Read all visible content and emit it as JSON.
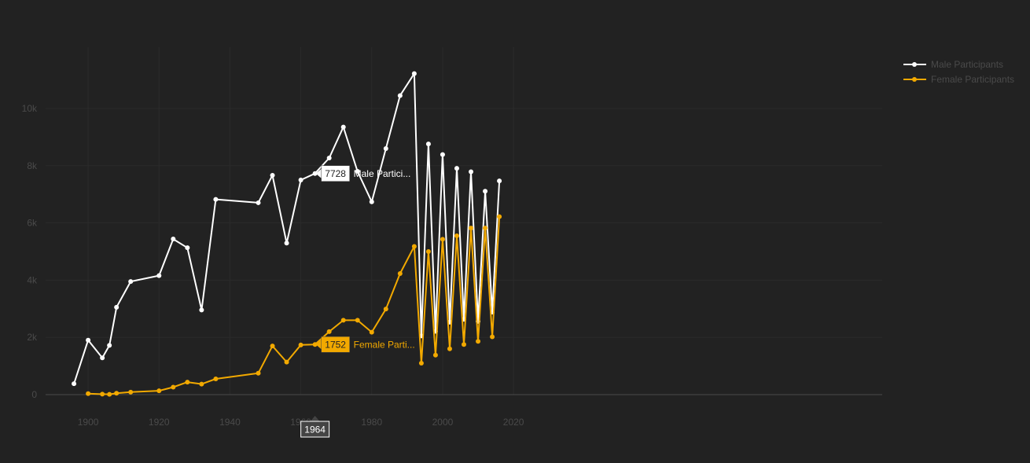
{
  "chart_data": {
    "type": "line",
    "title": "",
    "xlabel": "",
    "ylabel": "",
    "xlim": [
      1888,
      2124
    ],
    "ylim": [
      0,
      11200
    ],
    "x_ticks": [
      1900,
      1920,
      1940,
      1960,
      1980,
      2000,
      2020
    ],
    "x_tick_labels": [
      "1900",
      "1920",
      "1940",
      "1960",
      "1980",
      "2000",
      "2020"
    ],
    "y_ticks": [
      0,
      2000,
      4000,
      6000,
      8000,
      10000
    ],
    "y_tick_labels": [
      "0",
      "2k",
      "4k",
      "6k",
      "8k",
      "10k"
    ],
    "grid": true,
    "legend_position": "top-right",
    "series": [
      {
        "name": "Male Participants",
        "color": "#ffffff",
        "points": [
          [
            1896,
            380
          ],
          [
            1900,
            1903
          ],
          [
            1904,
            1285
          ],
          [
            1906,
            1722
          ],
          [
            1908,
            3054
          ],
          [
            1912,
            3953
          ],
          [
            1920,
            4158
          ],
          [
            1924,
            5438
          ],
          [
            1928,
            5133
          ],
          [
            1932,
            2956
          ],
          [
            1936,
            6823
          ],
          [
            1948,
            6705
          ],
          [
            1952,
            7664
          ],
          [
            1956,
            5294
          ],
          [
            1960,
            7500
          ],
          [
            1964,
            7728
          ],
          [
            1968,
            8270
          ],
          [
            1972,
            9351
          ],
          [
            1976,
            7801
          ],
          [
            1980,
            6738
          ],
          [
            1984,
            8600
          ],
          [
            1988,
            10450
          ],
          [
            1992,
            11220
          ],
          [
            1994,
            2050
          ],
          [
            1996,
            8760
          ],
          [
            1998,
            2210
          ],
          [
            2000,
            8390
          ],
          [
            2002,
            2530
          ],
          [
            2004,
            7910
          ],
          [
            2006,
            2630
          ],
          [
            2008,
            7790
          ],
          [
            2010,
            2560
          ],
          [
            2012,
            7110
          ],
          [
            2014,
            2880
          ],
          [
            2016,
            7470
          ]
        ]
      },
      {
        "name": "Female Participants",
        "color": "#f2a900",
        "points": [
          [
            1900,
            33
          ],
          [
            1904,
            16
          ],
          [
            1906,
            11
          ],
          [
            1908,
            47
          ],
          [
            1912,
            87
          ],
          [
            1920,
            134
          ],
          [
            1924,
            261
          ],
          [
            1928,
            437
          ],
          [
            1932,
            369
          ],
          [
            1936,
            549
          ],
          [
            1948,
            748
          ],
          [
            1952,
            1700
          ],
          [
            1956,
            1138
          ],
          [
            1960,
            1735
          ],
          [
            1964,
            1752
          ],
          [
            1968,
            2200
          ],
          [
            1972,
            2600
          ],
          [
            1976,
            2600
          ],
          [
            1980,
            2180
          ],
          [
            1984,
            2990
          ],
          [
            1988,
            4230
          ],
          [
            1992,
            5180
          ],
          [
            1994,
            1100
          ],
          [
            1996,
            5000
          ],
          [
            1998,
            1380
          ],
          [
            2000,
            5430
          ],
          [
            2002,
            1600
          ],
          [
            2004,
            5550
          ],
          [
            2006,
            1750
          ],
          [
            2008,
            5820
          ],
          [
            2010,
            1860
          ],
          [
            2012,
            5820
          ],
          [
            2014,
            2020
          ],
          [
            2016,
            6220
          ]
        ]
      }
    ],
    "hover": {
      "x_label": "1964",
      "labels": [
        {
          "value": "7728",
          "text": "Male Partici...",
          "series": 0
        },
        {
          "value": "1752",
          "text": "Female Parti...",
          "series": 1
        }
      ]
    }
  }
}
